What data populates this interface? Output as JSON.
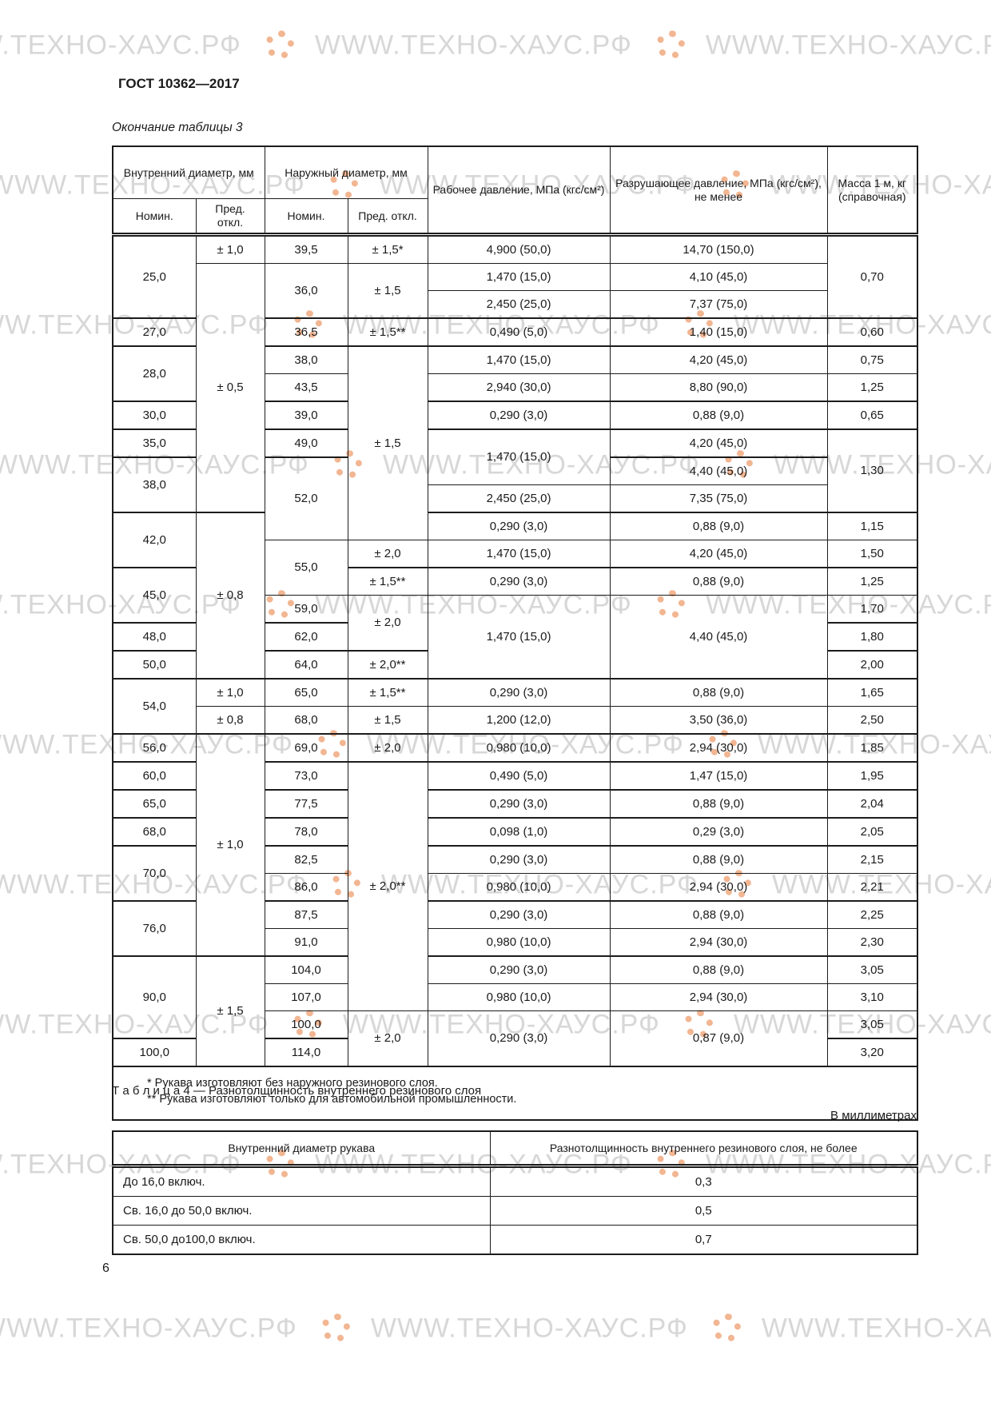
{
  "page": {
    "doc_number": "ГОСТ 10362—2017",
    "table3_continuation": "Окончание таблицы 3",
    "page_number": "6"
  },
  "watermark": {
    "text": "WWW.ТЕХНО-ХАУС.РФ",
    "text_color": "#d7d7d7",
    "logo_color": "#f0a478",
    "logo_icon": "swirl-gear-logo"
  },
  "table3": {
    "header": {
      "inner_diameter": "Внутренний диаметр, мм",
      "outer_diameter": "Наружный диаметр, мм",
      "working_pressure": "Рабочее давление, МПа (кгс/см²)",
      "burst_pressure": "Разрушающее давление, МПа (кгс/см²), не менее",
      "mass": "Масса 1 м, кг (справочная)",
      "nominal_inner": "Номин.",
      "deviation_inner": "Пред. откл.",
      "nominal_outer": "Номин.",
      "deviation_outer": "Пред. откл."
    },
    "rows": [
      {
        "thick": false,
        "cells": [
          {
            "t": "25,0",
            "rs": 3
          },
          {
            "t": "± 1,0"
          },
          {
            "t": "39,5"
          },
          {
            "t": "± 1,5*"
          },
          {
            "t": "4,900 (50,0)"
          },
          {
            "t": "14,70 (150,0)"
          },
          {
            "t": "0,70",
            "rs": 3
          }
        ]
      },
      {
        "thick": false,
        "cells": [
          {
            "t": "± 0,5",
            "rs": 9
          },
          {
            "t": "36,0",
            "rs": 2
          },
          {
            "t": "± 1,5",
            "rs": 2
          },
          {
            "t": "1,470 (15,0)"
          },
          {
            "t": "4,10 (45,0)"
          }
        ]
      },
      {
        "thick": false,
        "cells": [
          {
            "t": "2,450 (25,0)"
          },
          {
            "t": "7,37 (75,0)"
          }
        ]
      },
      {
        "thick": true,
        "cells": [
          {
            "t": "27,0"
          },
          {
            "t": "36,5"
          },
          {
            "t": "± 1,5**"
          },
          {
            "t": "0,490 (5,0)"
          },
          {
            "t": "1,40 (15,0)"
          },
          {
            "t": "0,60"
          }
        ]
      },
      {
        "thick": true,
        "cells": [
          {
            "t": "28,0",
            "rs": 2
          },
          {
            "t": "38,0"
          },
          {
            "t": "± 1,5",
            "rs": 7
          },
          {
            "t": "1,470 (15,0)"
          },
          {
            "t": "4,20 (45,0)"
          },
          {
            "t": "0,75"
          }
        ]
      },
      {
        "thick": false,
        "cells": [
          {
            "t": "43,5"
          },
          {
            "t": "2,940 (30,0)"
          },
          {
            "t": "8,80 (90,0)"
          },
          {
            "t": "1,25"
          }
        ]
      },
      {
        "thick": true,
        "cells": [
          {
            "t": "30,0"
          },
          {
            "t": "39,0"
          },
          {
            "t": "0,290 (3,0)"
          },
          {
            "t": "0,88 (9,0)"
          },
          {
            "t": "0,65"
          }
        ]
      },
      {
        "thick": true,
        "cells": [
          {
            "t": "35,0"
          },
          {
            "t": "49,0"
          },
          {
            "t": "1,470 (15,0)",
            "rs": 2
          },
          {
            "t": "4,20 (45,0)"
          },
          {
            "t": "1,30",
            "rs": 3
          }
        ]
      },
      {
        "thick": true,
        "cells": [
          {
            "t": "38,0",
            "rs": 2
          },
          {
            "t": "52,0",
            "rs": 3
          },
          {
            "t": "4,40 (45,0)"
          }
        ]
      },
      {
        "thick": false,
        "cells": [
          {
            "t": "2,450 (25,0)"
          },
          {
            "t": "7,35 (75,0)"
          }
        ]
      },
      {
        "thick": true,
        "cells": [
          {
            "t": "42,0",
            "rs": 2
          },
          {
            "t": "± 0,8",
            "rs": 6
          },
          {
            "t": "0,290 (3,0)"
          },
          {
            "t": "0,88 (9,0)"
          },
          {
            "t": "1,15"
          }
        ]
      },
      {
        "thick": false,
        "cells": [
          {
            "t": "55,0",
            "rs": 2
          },
          {
            "t": "± 2,0"
          },
          {
            "t": "1,470 (15,0)"
          },
          {
            "t": "4,20 (45,0)"
          },
          {
            "t": "1,50"
          }
        ]
      },
      {
        "thick": true,
        "cells": [
          {
            "t": "45,0",
            "rs": 2
          },
          {
            "t": "± 1,5**"
          },
          {
            "t": "0,290 (3,0)"
          },
          {
            "t": "0,88 (9,0)"
          },
          {
            "t": "1,25"
          }
        ]
      },
      {
        "thick": false,
        "cells": [
          {
            "t": "59,0"
          },
          {
            "t": "± 2,0",
            "rs": 2
          },
          {
            "t": "1,470 (15,0)",
            "rs": 3
          },
          {
            "t": "4,40 (45,0)",
            "rs": 3
          },
          {
            "t": "1,70"
          }
        ]
      },
      {
        "thick": true,
        "cells": [
          {
            "t": "48,0"
          },
          {
            "t": "62,0"
          },
          {
            "t": "1,80"
          }
        ]
      },
      {
        "thick": true,
        "cells": [
          {
            "t": "50,0"
          },
          {
            "t": "64,0"
          },
          {
            "t": "± 2,0**"
          },
          {
            "t": "2,00"
          }
        ]
      },
      {
        "thick": true,
        "cells": [
          {
            "t": "54,0",
            "rs": 2
          },
          {
            "t": "± 1,0"
          },
          {
            "t": "65,0"
          },
          {
            "t": "± 1,5**"
          },
          {
            "t": "0,290 (3,0)"
          },
          {
            "t": "0,88 (9,0)"
          },
          {
            "t": "1,65"
          }
        ]
      },
      {
        "thick": false,
        "cells": [
          {
            "t": "± 0,8"
          },
          {
            "t": "68,0"
          },
          {
            "t": "± 1,5"
          },
          {
            "t": "1,200 (12,0)"
          },
          {
            "t": "3,50 (36,0)"
          },
          {
            "t": "2,50"
          }
        ]
      },
      {
        "thick": true,
        "cells": [
          {
            "t": "56,0"
          },
          {
            "t": "± 1,0",
            "rs": 8
          },
          {
            "t": "69,0"
          },
          {
            "t": "± 2,0"
          },
          {
            "t": "0,980 (10,0)"
          },
          {
            "t": "2,94 (30,0)"
          },
          {
            "t": "1,85"
          }
        ]
      },
      {
        "thick": true,
        "cells": [
          {
            "t": "60,0"
          },
          {
            "t": "73,0"
          },
          {
            "t": "± 2,0**",
            "rs": 9
          },
          {
            "t": "0,490 (5,0)"
          },
          {
            "t": "1,47 (15,0)"
          },
          {
            "t": "1,95"
          }
        ]
      },
      {
        "thick": true,
        "cells": [
          {
            "t": "65,0"
          },
          {
            "t": "77,5"
          },
          {
            "t": "0,290 (3,0)"
          },
          {
            "t": "0,88 (9,0)"
          },
          {
            "t": "2,04"
          }
        ]
      },
      {
        "thick": true,
        "cells": [
          {
            "t": "68,0"
          },
          {
            "t": "78,0"
          },
          {
            "t": "0,098 (1,0)"
          },
          {
            "t": "0,29 (3,0)"
          },
          {
            "t": "2,05"
          }
        ]
      },
      {
        "thick": true,
        "cells": [
          {
            "t": "70,0",
            "rs": 2
          },
          {
            "t": "82,5"
          },
          {
            "t": "0,290 (3,0)"
          },
          {
            "t": "0,88 (9,0)"
          },
          {
            "t": "2,15"
          }
        ]
      },
      {
        "thick": false,
        "cells": [
          {
            "t": "86,0"
          },
          {
            "t": "0,980 (10,0)"
          },
          {
            "t": "2,94 (30,0)"
          },
          {
            "t": "2,21"
          }
        ]
      },
      {
        "thick": true,
        "cells": [
          {
            "t": "76,0",
            "rs": 2
          },
          {
            "t": "87,5"
          },
          {
            "t": "0,290 (3,0)"
          },
          {
            "t": "0,88 (9,0)"
          },
          {
            "t": "2,25"
          }
        ]
      },
      {
        "thick": false,
        "cells": [
          {
            "t": "91,0"
          },
          {
            "t": "0,980 (10,0)"
          },
          {
            "t": "2,94 (30,0)"
          },
          {
            "t": "2,30"
          }
        ]
      },
      {
        "thick": true,
        "cells": [
          {
            "t": "90,0",
            "rs": 3
          },
          {
            "t": "± 1,5",
            "rs": 4
          },
          {
            "t": "104,0"
          },
          {
            "t": "0,290 (3,0)"
          },
          {
            "t": "0,88 (9,0)"
          },
          {
            "t": "3,05"
          }
        ]
      },
      {
        "thick": false,
        "cells": [
          {
            "t": "107,0"
          },
          {
            "t": "0,980 (10,0)"
          },
          {
            "t": "2,94 (30,0)"
          },
          {
            "t": "3,10"
          }
        ]
      },
      {
        "thick": false,
        "cells": [
          {
            "t": "100,0"
          },
          {
            "t": "± 2,0",
            "rs": 2
          },
          {
            "t": "0,290 (3,0)",
            "rs": 2
          },
          {
            "t": "0,87 (9,0)",
            "rs": 2
          },
          {
            "t": "3,05"
          }
        ]
      },
      {
        "thick": true,
        "cells": [
          {
            "t": "100,0"
          },
          {
            "t": "114,0"
          },
          {
            "t": "3,20"
          }
        ]
      }
    ],
    "footnotes": [
      "* Рукава изготовляют без наружного резинового слоя.",
      "** Рукава изготовляют только для автомобильной промышленности."
    ]
  },
  "table4": {
    "caption": "Т а б л и ц а  4 — Разнотолщинность внутреннего резинового слоя",
    "units_note": "В миллиметрах",
    "header": [
      "Внутренний диаметр рукава",
      "Разнотолщинность внутреннего резинового слоя, не более"
    ],
    "rows": [
      [
        "До 16,0 включ.",
        "0,3"
      ],
      [
        "Св. 16,0 до 50,0 включ.",
        "0,5"
      ],
      [
        "Св. 50,0 до100,0 включ.",
        "0,7"
      ]
    ]
  }
}
